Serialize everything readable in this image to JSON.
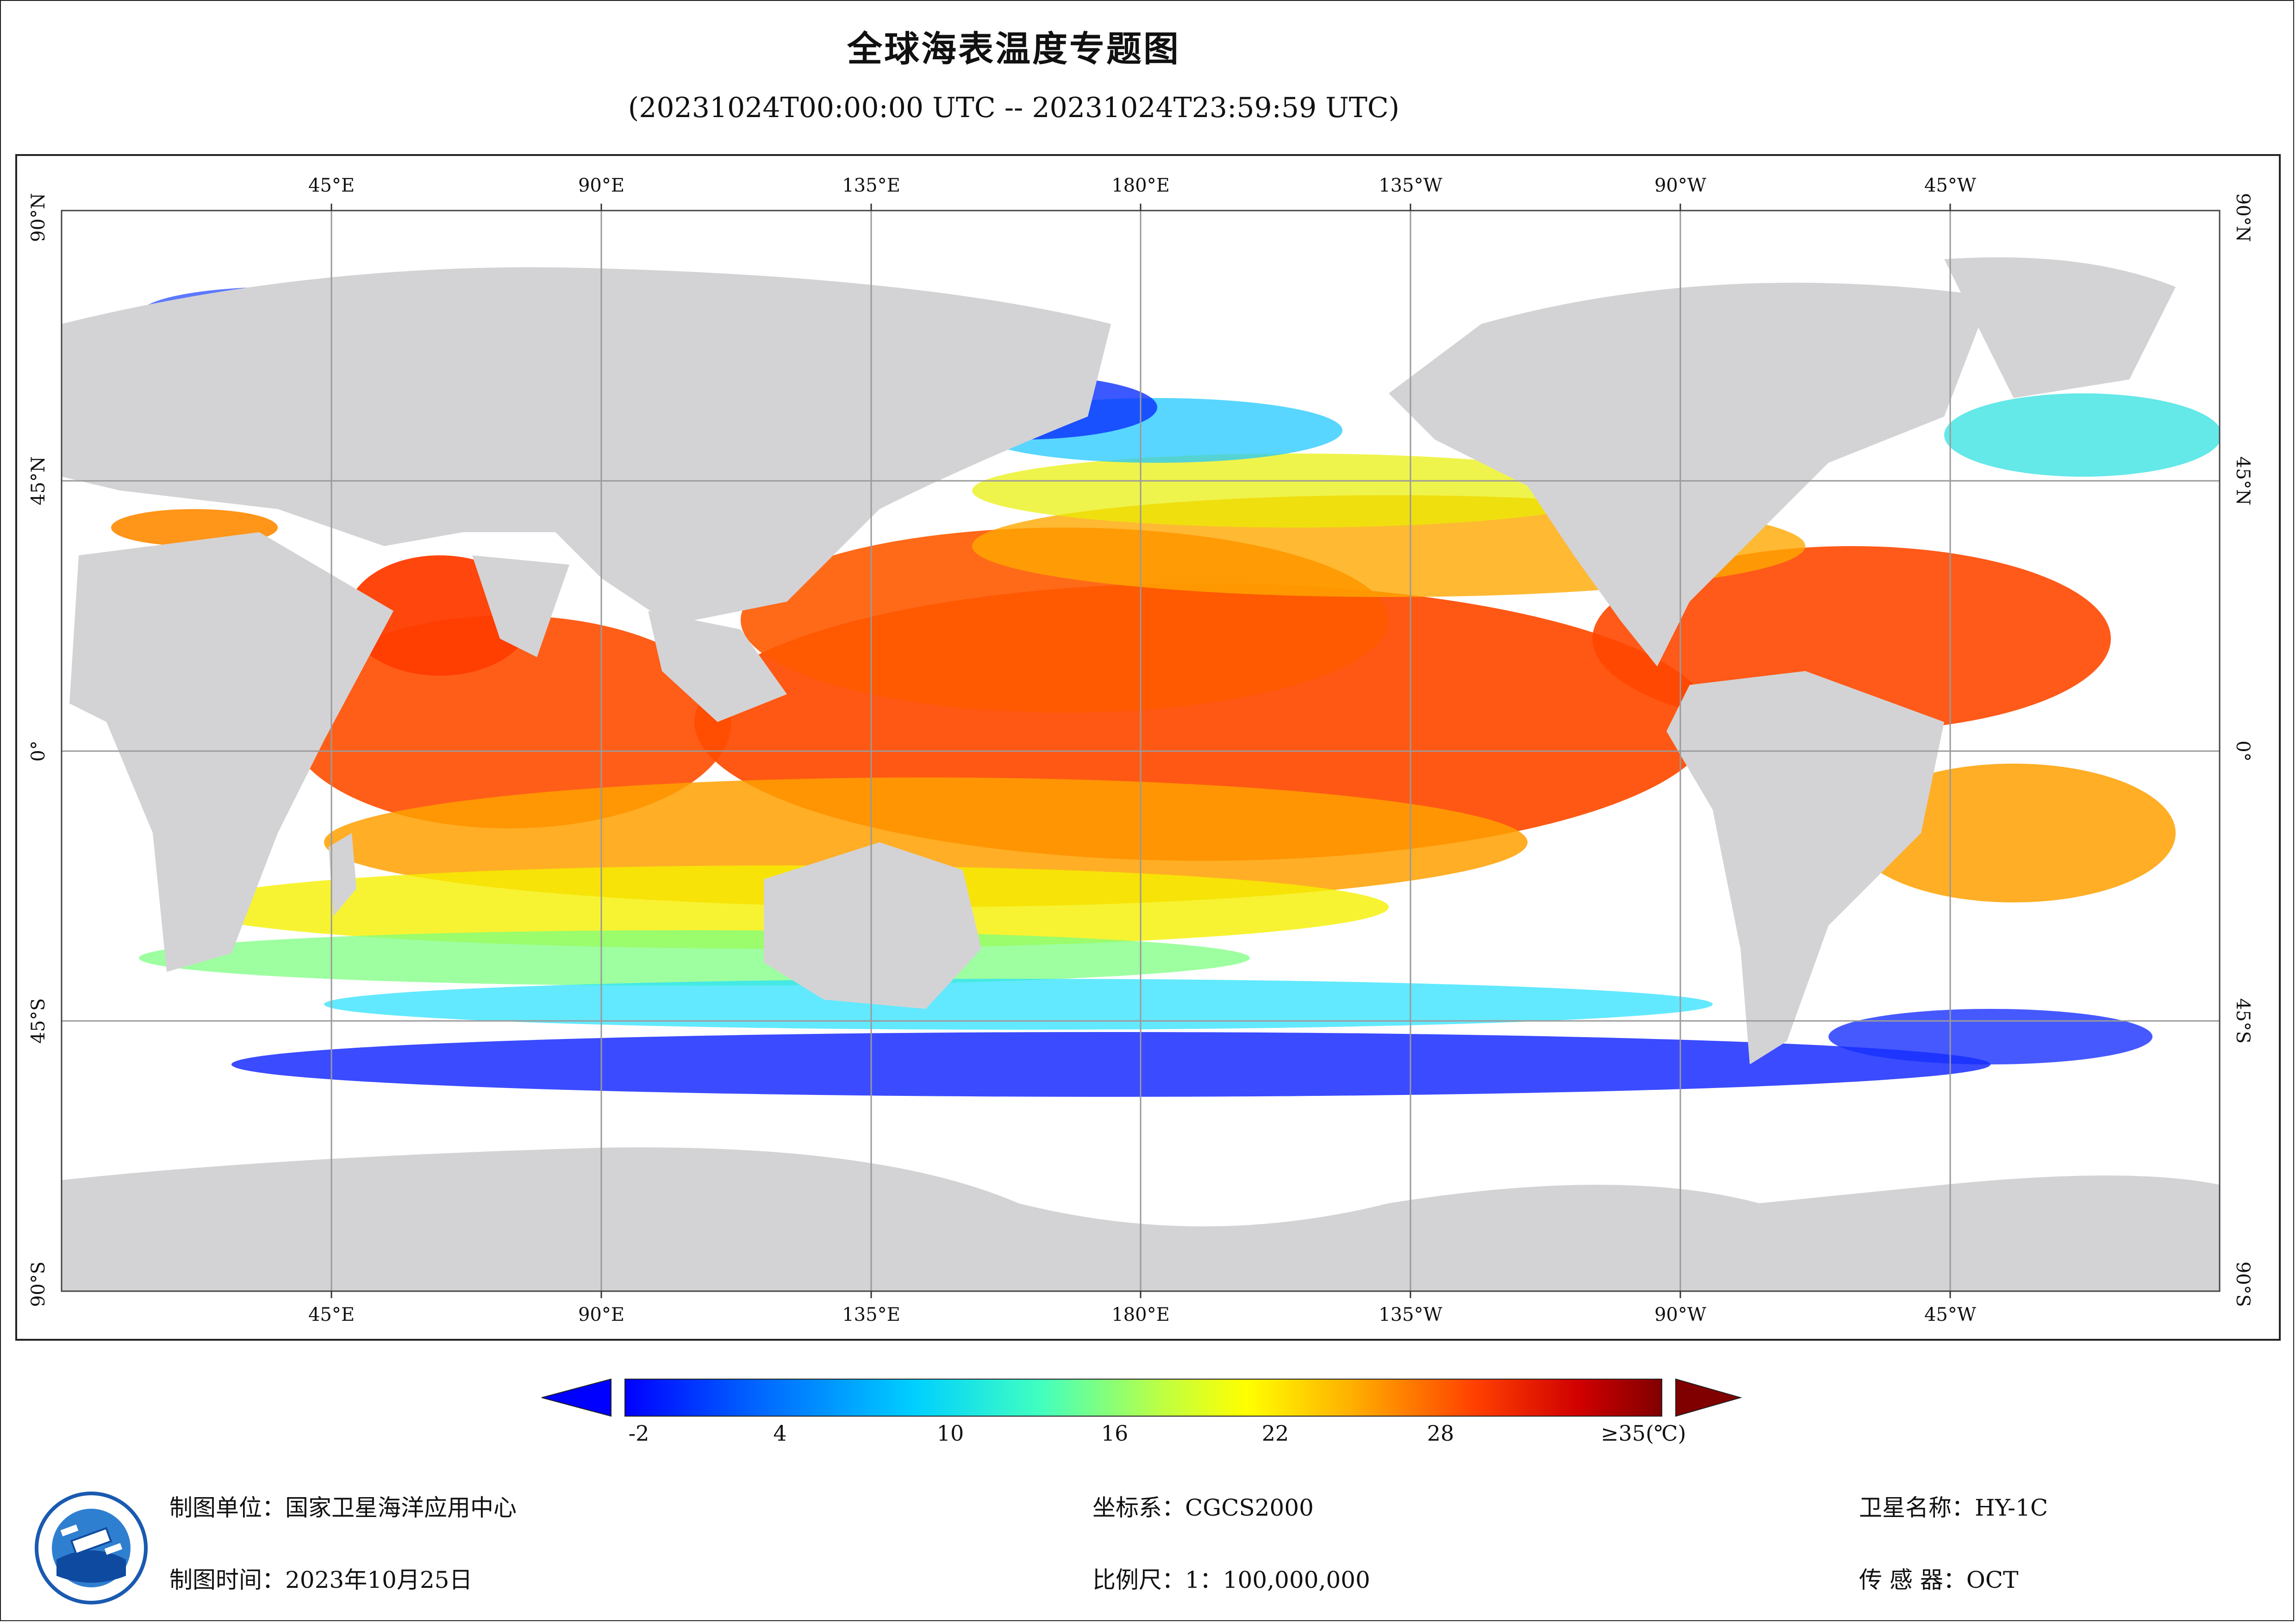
{
  "title": "全球海表温度专题图",
  "subtitle": "(20231024T00:00:00 UTC -- 20231024T23:59:59 UTC)",
  "map": {
    "lon_labels_top": [
      "45°E",
      "90°E",
      "135°E",
      "180°E",
      "135°W",
      "90°W",
      "45°W"
    ],
    "lon_labels_bottom": [
      "45°E",
      "90°E",
      "135°E",
      "180°E",
      "135°W",
      "90°W",
      "45°W"
    ],
    "lat_labels_left": [
      "90°N",
      "45°N",
      "0°",
      "45°S",
      "90°S"
    ],
    "lat_labels_right": [
      "90°N",
      "45°N",
      "0°",
      "45°S",
      "90°S"
    ],
    "colors": {
      "land": "#d3d3d5",
      "no_data": "#ffffff",
      "grid": "#9a9a9a"
    }
  },
  "legend": {
    "ticks": [
      "-2",
      "4",
      "10",
      "16",
      "22",
      "28"
    ],
    "max_label": "≥35(℃)",
    "min_value": -2,
    "max_value": 35,
    "palette": [
      "#0000ff",
      "#0060ff",
      "#00c8ff",
      "#40ffc0",
      "#a0ff60",
      "#ffff00",
      "#ffb000",
      "#ff4000",
      "#d00000",
      "#800000"
    ]
  },
  "footer": {
    "unit": "制图单位：国家卫星海洋应用中心",
    "time": "制图时间：2023年10月25日",
    "crs": "坐标系：CGCS2000",
    "scale": "比例尺：1：100,000,000",
    "satellite": "卫星名称：HY-1C",
    "sensor": "传 感 器：OCT"
  },
  "logo": {
    "icon": "nsoas-logo-icon"
  }
}
